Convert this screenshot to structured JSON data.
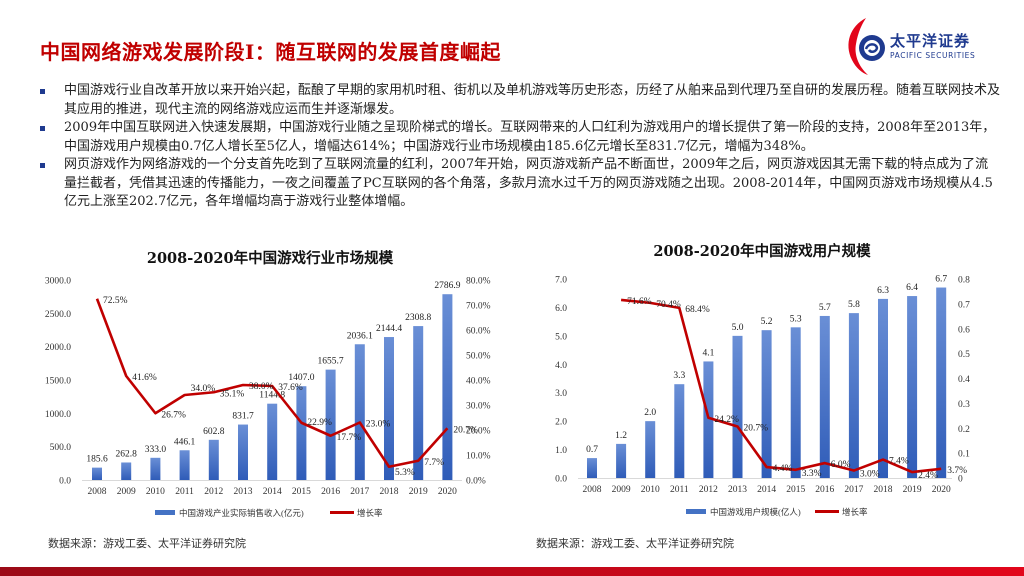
{
  "header": {
    "title": "中国网络游戏发展阶段I：随互联网的发展首度崛起",
    "logo": {
      "cn": "太平洋证券",
      "en": "PACIFIC SECURITIES",
      "icon": "pacific-securities-logo-icon"
    }
  },
  "bullets": [
    {
      "text": "中国游戏行业自改革开放以来开始兴起，酝酿了早期的家用机时租、街机以及单机游戏等历史形态，历经了从舶来品到代理乃至自研的发展历程。随着互联网技术及其应用的推进，现代主流的网络游戏应运而生并逐渐爆发。"
    },
    {
      "text": "2009年中国互联网进入快速发展期，中国游戏行业随之呈现阶梯式的增长。互联网带来的人口红利为游戏用户的增长提供了第一阶段的支持，2008年至2013年，中国游戏用户规模由0.7亿人增长至5亿人，增幅达614%；中国游戏行业市场规模由185.6亿元增长至831.7亿元，增幅为348%。"
    },
    {
      "text": "网页游戏作为网络游戏的一个分支首先吃到了互联网流量的红利，2007年开始，网页游戏新产品不断面世，2009年之后，网页游戏因其无需下载的特点成为了流量拦截者，凭借其迅速的传播能力，一夜之间覆盖了PC互联网的各个角落，多款月流水过千万的网页游戏随之出现。2008-2014年，中国网页游戏市场规模从4.5亿元上涨至202.7亿元，各年增幅均高于游戏行业整体增幅。"
    }
  ],
  "colors": {
    "title": "#c00000",
    "bar": "#4472c4",
    "line": "#c00000",
    "bullet": "#1f3a8f",
    "footer": "#c8071a"
  },
  "chart_data": [
    {
      "type": "bar",
      "title": "2008-2020年中国游戏行业市场规模",
      "categories": [
        "2008",
        "2009",
        "2010",
        "2011",
        "2012",
        "2013",
        "2014",
        "2015",
        "2016",
        "2017",
        "2018",
        "2019",
        "2020"
      ],
      "series": [
        {
          "name": "中国游戏产业实际销售收入(亿元)",
          "type": "bar",
          "axis": "left",
          "values": [
            185.6,
            262.8,
            333.0,
            446.1,
            602.8,
            831.7,
            1144.8,
            1407.0,
            1655.7,
            2036.1,
            2144.4,
            2308.8,
            2786.9
          ],
          "labels": [
            "185.6",
            "262.8",
            "333.0",
            "446.1",
            "602.8",
            "831.7",
            "1144.8",
            "1407.0",
            "1655.7",
            "2036.1",
            "2144.4",
            "2308.8",
            "2786.9"
          ]
        },
        {
          "name": "增长率",
          "type": "line",
          "axis": "right",
          "values": [
            72.5,
            41.6,
            26.7,
            34.0,
            35.1,
            38.0,
            37.6,
            22.9,
            17.7,
            23.0,
            5.3,
            7.7,
            20.7
          ],
          "labels": [
            "72.5%",
            "41.6%",
            "26.7%",
            "34.0%",
            "35.1%",
            "38.0%",
            "37.6%",
            "22.9%",
            "17.7%",
            "23.0%",
            "5.3%",
            "7.7%",
            "20.7%"
          ]
        }
      ],
      "ylim": [
        0,
        3000
      ],
      "y_ticks": [
        "0.0",
        "500.0",
        "1000.0",
        "1500.0",
        "2000.0",
        "2500.0",
        "3000.0"
      ],
      "y2lim": [
        0,
        80
      ],
      "y2_ticks": [
        "0.0%",
        "10.0%",
        "20.0%",
        "30.0%",
        "40.0%",
        "50.0%",
        "60.0%",
        "70.0%",
        "80.0%"
      ],
      "legend_position": "bottom",
      "grid": false,
      "source": "数据来源：游戏工委、太平洋证券研究院"
    },
    {
      "type": "bar",
      "title": "2008-2020年中国游戏用户规模",
      "categories": [
        "2008",
        "2009",
        "2010",
        "2011",
        "2012",
        "2013",
        "2014",
        "2015",
        "2016",
        "2017",
        "2018",
        "2019",
        "2020"
      ],
      "series": [
        {
          "name": "中国游戏用户规模(亿人)",
          "type": "bar",
          "axis": "left",
          "values": [
            0.7,
            1.2,
            2.0,
            3.3,
            4.1,
            5.0,
            5.2,
            5.3,
            5.7,
            5.8,
            6.3,
            6.4,
            6.7
          ],
          "labels": [
            "0.7",
            "1.2",
            "2.0",
            "3.3",
            "4.1",
            "5.0",
            "5.2",
            "5.3",
            "5.7",
            "5.8",
            "6.3",
            "6.4",
            "6.7"
          ]
        },
        {
          "name": "增长率",
          "type": "line",
          "axis": "right",
          "values": [
            null,
            71.6,
            70.4,
            68.4,
            24.2,
            20.7,
            4.4,
            3.3,
            6.0,
            3.0,
            7.4,
            2.4,
            3.7
          ],
          "labels": [
            "",
            "71.6%",
            "70.4%",
            "68.4%",
            "24.2%",
            "20.7%",
            "4.4%",
            "3.3%",
            "6.0%",
            "3.0%",
            "7.4%",
            "2.4%",
            "3.7%"
          ]
        }
      ],
      "ylim": [
        0,
        7
      ],
      "y_ticks": [
        "0.0",
        "1.0",
        "2.0",
        "3.0",
        "4.0",
        "5.0",
        "6.0",
        "7.0"
      ],
      "y2lim": [
        0,
        0.8
      ],
      "y2_ticks": [
        "0",
        "0.1",
        "0.2",
        "0.3",
        "0.4",
        "0.5",
        "0.6",
        "0.7",
        "0.8"
      ],
      "legend_position": "bottom",
      "grid": false,
      "source": "数据来源：游戏工委、太平洋证券研究院"
    }
  ]
}
